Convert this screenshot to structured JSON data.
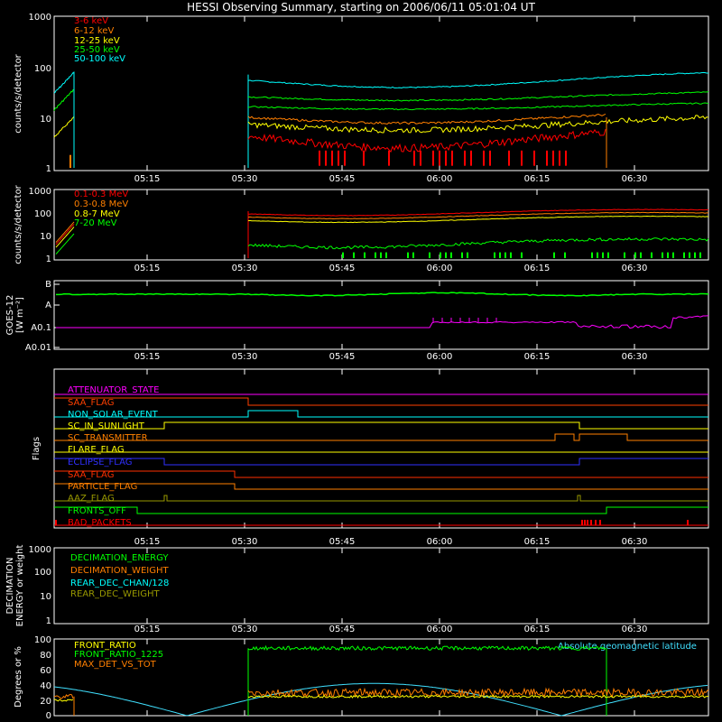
{
  "title": "HESSI Observing Summary, starting on 2006/06/11 05:01:04 UT",
  "time_ticks": [
    "05:15",
    "05:30",
    "05:45",
    "06:00",
    "06:15",
    "06:30"
  ],
  "chart_data": [
    {
      "type": "line",
      "name": "lightcurves",
      "ylabel": "counts/s/detector",
      "scale": "log",
      "ylim": [
        1,
        1000
      ],
      "yticks": [
        "1",
        "10",
        "100",
        "1000"
      ],
      "legend_position": "top-left",
      "series": [
        {
          "name": "3-6 keV",
          "color": "#ff0000"
        },
        {
          "name": "6-12 keV",
          "color": "#ff7f00"
        },
        {
          "name": "12-25 keV",
          "color": "#ffff00"
        },
        {
          "name": "25-50 keV",
          "color": "#00ff00"
        },
        {
          "name": "50-100 keV",
          "color": "#00ffff"
        }
      ]
    },
    {
      "type": "line",
      "name": "high-energy",
      "ylabel": "counts/s/detector",
      "scale": "log",
      "ylim": [
        1,
        1000
      ],
      "yticks": [
        "1",
        "10",
        "100",
        "1000"
      ],
      "legend_position": "top-left",
      "series": [
        {
          "name": "0.1-0.3 MeV",
          "color": "#ff0000"
        },
        {
          "name": "0.3-0.8 MeV",
          "color": "#ff7f00"
        },
        {
          "name": "0.8-7 MeV",
          "color": "#ffff00"
        },
        {
          "name": "7-20 MeV",
          "color": "#00ff00"
        }
      ]
    },
    {
      "type": "line",
      "name": "goes",
      "ylabel": "GOES-12",
      "ylabel2": "[W m⁻²]",
      "yticks": [
        "A0.01",
        "A0.1",
        "A",
        "B"
      ]
    },
    {
      "type": "line",
      "name": "flags",
      "ylabel": "Flags",
      "series": [
        {
          "name": "ATTENUATOR_STATE",
          "color": "#ff00ff"
        },
        {
          "name": "SAA_FLAG",
          "color": "#ff4000"
        },
        {
          "name": "NON_SOLAR_EVENT",
          "color": "#00ffff"
        },
        {
          "name": "SC_IN_SUNLIGHT",
          "color": "#ffff00"
        },
        {
          "name": "SC_TRANSMITTER",
          "color": "#ff8000"
        },
        {
          "name": "FLARE_FLAG",
          "color": "#ffff00"
        },
        {
          "name": "ECLIPSE_FLAG",
          "color": "#3030ff"
        },
        {
          "name": "SAA_FLAG",
          "color": "#ff3000"
        },
        {
          "name": "PARTICLE_FLAG",
          "color": "#ff8000"
        },
        {
          "name": "AAZ_FLAG",
          "color": "#999900"
        },
        {
          "name": "FRONTS_OFF",
          "color": "#00ff00"
        },
        {
          "name": "BAD_PACKETS",
          "color": "#ff0000"
        }
      ]
    },
    {
      "type": "line",
      "name": "decimation",
      "ylabel": "DECIMATION",
      "ylabel2": "ENERGY or weight",
      "scale": "log",
      "ylim": [
        1,
        1000
      ],
      "yticks": [
        "1",
        "10",
        "100",
        "1000"
      ],
      "legend_position": "top-left",
      "series": [
        {
          "name": "DECIMATION_ENERGY",
          "color": "#00ff00"
        },
        {
          "name": "DECIMATION_WEIGHT",
          "color": "#ff7f00"
        },
        {
          "name": "REAR_DEC_CHAN/128",
          "color": "#00ffff"
        },
        {
          "name": "REAR_DEC_WEIGHT",
          "color": "#999900"
        }
      ]
    },
    {
      "type": "line",
      "name": "ratios",
      "ylabel": "Degrees or %",
      "ylim": [
        0,
        100
      ],
      "yticks": [
        "0",
        "20",
        "40",
        "60",
        "80",
        "100"
      ],
      "legend_position": "top-left",
      "annotation": "Absolute geomagnetic latitude",
      "series": [
        {
          "name": "FRONT_RATIO",
          "color": "#ffff00"
        },
        {
          "name": "FRONT_RATIO_1225",
          "color": "#00ff00"
        },
        {
          "name": "MAX_DET_VS_TOT",
          "color": "#ff7f00"
        },
        {
          "name": "Absolute geomagnetic latitude",
          "color": "#40e0ff"
        }
      ]
    }
  ]
}
